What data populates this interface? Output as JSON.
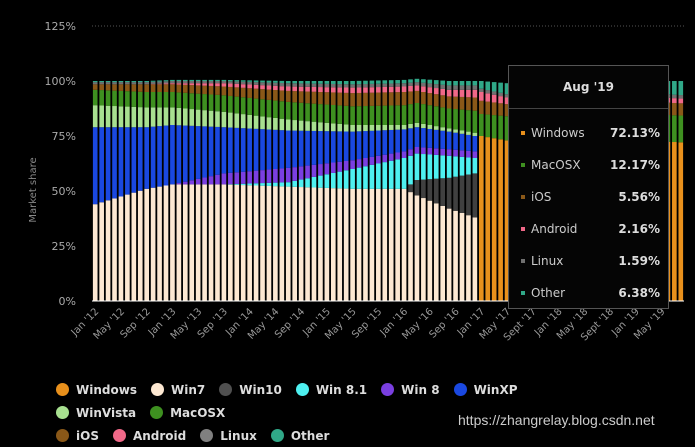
{
  "chart_data": {
    "type": "bar",
    "stacked": true,
    "title": "",
    "xlabel": "",
    "ylabel": "Market share",
    "ylim": [
      0,
      125
    ],
    "yticks": [
      "0%",
      "25%",
      "50%",
      "75%",
      "100%",
      "125%"
    ],
    "ytick_values": [
      0,
      25,
      50,
      75,
      100,
      125
    ],
    "xtick_labels": [
      "Jan '12",
      "May '12",
      "Sep '12",
      "Jan '13",
      "May '13",
      "Sep '13",
      "Jan '14",
      "May '14",
      "Sep '14",
      "Jan '15",
      "May '15",
      "Sep '15",
      "Jan '16",
      "May '16",
      "Sep '16",
      "Jan '17",
      "May '17",
      "Sept '17",
      "Jan '18",
      "May '18",
      "Sept '18",
      "Jan '19",
      "May '19"
    ],
    "start_month": "Jan '12",
    "end_month": "Aug '19",
    "legend_position": "bottom",
    "series": [
      {
        "name": "Windows",
        "color": "#e8901c"
      },
      {
        "name": "Win7",
        "color": "#fde8d2"
      },
      {
        "name": "Win10",
        "color": "#404040"
      },
      {
        "name": "Win 8.1",
        "color": "#4ef0f0"
      },
      {
        "name": "Win 8",
        "color": "#7a3fe0"
      },
      {
        "name": "WinXP",
        "color": "#1a48e0"
      },
      {
        "name": "WinVista",
        "color": "#a8e090"
      },
      {
        "name": "MacOSX",
        "color": "#3e9020"
      },
      {
        "name": "iOS",
        "color": "#8a5818"
      },
      {
        "name": "Android",
        "color": "#f06888"
      },
      {
        "name": "Linux",
        "color": "#707070"
      },
      {
        "name": "Other",
        "color": "#30a888"
      }
    ],
    "keyframes": [
      {
        "month": 0,
        "Windows": 0,
        "Win7": 44,
        "Win10": 0,
        "Win 8.1": 0,
        "Win 8": 0,
        "WinXP": 35,
        "WinVista": 10,
        "MacOSX": 7,
        "iOS": 2.5,
        "Android": 0,
        "Linux": 1,
        "Other": 0.5
      },
      {
        "month": 8,
        "Windows": 0,
        "Win7": 51,
        "Win10": 0,
        "Win 8.1": 0,
        "Win 8": 0,
        "WinXP": 28,
        "WinVista": 9,
        "MacOSX": 7,
        "iOS": 3.5,
        "Android": 0,
        "Linux": 1,
        "Other": 0.5
      },
      {
        "month": 12,
        "Windows": 0,
        "Win7": 53,
        "Win10": 0,
        "Win 8.1": 0,
        "Win 8": 0,
        "WinXP": 27,
        "WinVista": 8,
        "MacOSX": 7,
        "iOS": 3.5,
        "Android": 0.5,
        "Linux": 1,
        "Other": 0.5
      },
      {
        "month": 20,
        "Windows": 0,
        "Win7": 53,
        "Win10": 0,
        "Win 8.1": 0,
        "Win 8": 5,
        "WinXP": 21,
        "WinVista": 7,
        "MacOSX": 7.5,
        "iOS": 4,
        "Android": 1.5,
        "Linux": 1,
        "Other": 0.5
      },
      {
        "month": 30,
        "Windows": 0,
        "Win7": 52,
        "Win10": 0,
        "Win 8.1": 2,
        "Win 8": 6.5,
        "WinXP": 17,
        "WinVista": 5,
        "MacOSX": 8,
        "iOS": 5,
        "Android": 2,
        "Linux": 1.5,
        "Other": 1
      },
      {
        "month": 40,
        "Windows": 0,
        "Win7": 51,
        "Win10": 0,
        "Win 8.1": 9,
        "Win 8": 4,
        "WinXP": 13,
        "WinVista": 3,
        "MacOSX": 8.5,
        "iOS": 6,
        "Android": 2.5,
        "Linux": 1.5,
        "Other": 1.5
      },
      {
        "month": 48,
        "Windows": 0,
        "Win7": 51,
        "Win10": 0,
        "Win 8.1": 14,
        "Win 8": 3,
        "WinXP": 10,
        "WinVista": 2,
        "MacOSX": 9,
        "iOS": 6,
        "Android": 2.5,
        "Linux": 1.5,
        "Other": 1.5
      },
      {
        "month": 50,
        "Windows": 0,
        "Win7": 48,
        "Win10": 7,
        "Win 8.1": 12,
        "Win 8": 3,
        "WinXP": 9,
        "WinVista": 2,
        "MacOSX": 9,
        "iOS": 5.5,
        "Android": 2.5,
        "Linux": 1.5,
        "Other": 1.5
      },
      {
        "month": 55,
        "Windows": 0,
        "Win7": 42,
        "Win10": 14,
        "Win 8.1": 10,
        "Win 8": 3,
        "WinXP": 8,
        "WinVista": 1.5,
        "MacOSX": 9,
        "iOS": 5.5,
        "Android": 3,
        "Linux": 2,
        "Other": 2
      },
      {
        "month": 59,
        "Windows": 0,
        "Win7": 38,
        "Win10": 20,
        "Win 8.1": 7,
        "Win 8": 3,
        "WinXP": 7,
        "WinVista": 1.5,
        "MacOSX": 10,
        "iOS": 6,
        "Android": 3.5,
        "Linux": 2,
        "Other": 2
      },
      {
        "month": 60,
        "Windows": 75,
        "Win7": 0,
        "Win10": 0,
        "Win 8.1": 0,
        "Win 8": 0,
        "WinXP": 0,
        "WinVista": 0,
        "MacOSX": 10,
        "iOS": 6,
        "Android": 4,
        "Linux": 1.5,
        "Other": 3.5
      },
      {
        "month": 64,
        "Windows": 73,
        "Win7": 0,
        "Win10": 0,
        "Win 8.1": 0,
        "Win 8": 0,
        "WinXP": 0,
        "WinVista": 0,
        "MacOSX": 11,
        "iOS": 5.5,
        "Android": 3,
        "Linux": 1.5,
        "Other": 5
      },
      {
        "month": 70,
        "Windows": 75,
        "Win7": 0,
        "Win10": 0,
        "Win 8.1": 0,
        "Win 8": 0,
        "WinXP": 0,
        "WinVista": 0,
        "MacOSX": 12,
        "iOS": 6,
        "Android": 3,
        "Linux": 1.5,
        "Other": 2.5
      },
      {
        "month": 91,
        "Windows": 72.13,
        "Win7": 0,
        "Win10": 0,
        "Win 8.1": 0,
        "Win 8": 0,
        "WinXP": 0,
        "WinVista": 0,
        "MacOSX": 12.17,
        "iOS": 5.56,
        "Android": 2.16,
        "Linux": 1.59,
        "Other": 6.38
      }
    ]
  },
  "tooltip": {
    "title": "Aug '19",
    "rows": [
      {
        "name": "Windows",
        "value": "72.13%",
        "color": "#e8901c"
      },
      {
        "name": "MacOSX",
        "value": "12.17%",
        "color": "#3e9020"
      },
      {
        "name": "iOS",
        "value": "5.56%",
        "color": "#8a5818"
      },
      {
        "name": "Android",
        "value": "2.16%",
        "color": "#f06888"
      },
      {
        "name": "Linux",
        "value": "1.59%",
        "color": "#707070"
      },
      {
        "name": "Other",
        "value": "6.38%",
        "color": "#30a888"
      }
    ]
  },
  "legend": [
    {
      "name": "Windows",
      "color": "#e8901c"
    },
    {
      "name": "Win7",
      "color": "#fde8d2"
    },
    {
      "name": "Win10",
      "color": "#505050"
    },
    {
      "name": "Win 8.1",
      "color": "#4ef0f0"
    },
    {
      "name": "Win 8",
      "color": "#7a3fe0"
    },
    {
      "name": "WinXP",
      "color": "#1a48e0"
    },
    {
      "name": "WinVista",
      "color": "#a8e090"
    },
    {
      "name": "MacOSX",
      "color": "#3e9020"
    },
    {
      "name": "iOS",
      "color": "#8a5818"
    },
    {
      "name": "Android",
      "color": "#f06888"
    },
    {
      "name": "Linux",
      "color": "#808080"
    },
    {
      "name": "Other",
      "color": "#30a888"
    }
  ],
  "watermark": "https://zhangrelay.blog.csdn.net"
}
